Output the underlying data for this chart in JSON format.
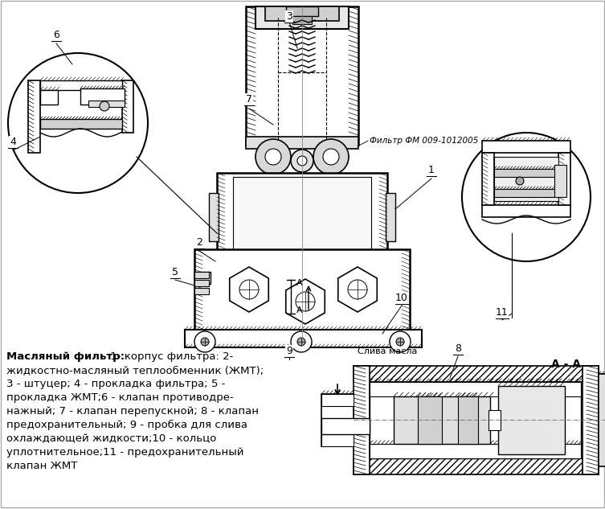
{
  "background_color": "#ffffff",
  "legend_title_bold": "Масляный фильтр:",
  "legend_title_normal": " 1- корпус фильтра: 2-",
  "legend_lines": [
    "жидкостно-масляный теплообменник (ЖМТ);",
    "3 - штуцер; 4 - прокладка фильтра; 5 -",
    "прокладка ЖМТ;6 - клапан противодре-",
    "нажный; 7 - клапан перепускной; 8 - клапан",
    "предохранительный; 9 - пробка для слива",
    "охлаждающей жидкости;10 - кольцо",
    "уплотнительное;11 - предохранительный",
    "клапан ЖМТ"
  ],
  "filter_label": "Фильтр ФМ 009-1012005",
  "section_label": "А - А",
  "drain_label": "Слива масла",
  "fig_width": 7.53,
  "fig_height": 6.33,
  "dpi": 100
}
